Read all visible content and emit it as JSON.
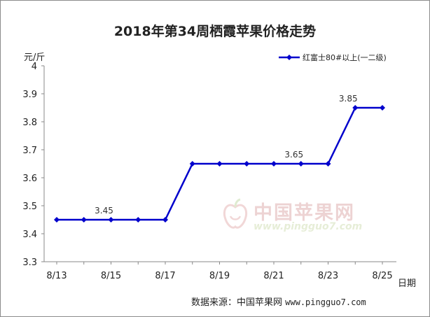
{
  "chart_data": {
    "type": "line",
    "title": "2018年第34周栖霞苹果价格走势",
    "ylabel": "元/斤",
    "xlabel": "日期",
    "ylim": [
      3.3,
      4.0
    ],
    "yticks": [
      "3.3",
      "3.4",
      "3.5",
      "3.6",
      "3.7",
      "3.8",
      "3.9",
      "4"
    ],
    "x": [
      "8/13",
      "8/14",
      "8/15",
      "8/16",
      "8/17",
      "8/18",
      "8/19",
      "8/20",
      "8/21",
      "8/22",
      "8/23",
      "8/24",
      "8/25"
    ],
    "xtick_labels": [
      "8/13",
      "8/15",
      "8/17",
      "8/19",
      "8/21",
      "8/23",
      "8/25"
    ],
    "series": [
      {
        "name": "红富士80#以上(一二级)",
        "color": "#0000cc",
        "values": [
          3.45,
          3.45,
          3.45,
          3.45,
          3.45,
          3.65,
          3.65,
          3.65,
          3.65,
          3.65,
          3.65,
          3.85,
          3.85
        ]
      }
    ],
    "data_labels": [
      {
        "index": 2,
        "text": "3.45"
      },
      {
        "index": 9,
        "text": "3.65"
      },
      {
        "index": 11,
        "text": "3.85"
      }
    ],
    "legend_position": "top-right",
    "grid": false
  },
  "source": {
    "label": "数据来源：中国苹果网",
    "url": "www.pingguo7.com"
  },
  "watermark": {
    "name": "中国苹果网",
    "url": "www.pingguo7.com"
  }
}
